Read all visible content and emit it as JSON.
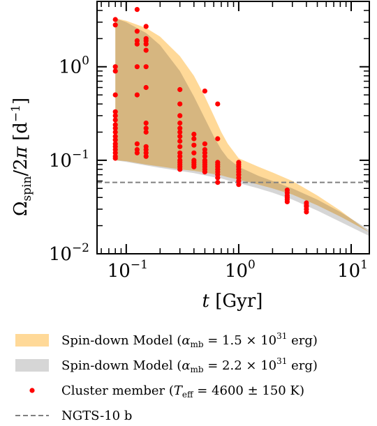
{
  "chart_data": {
    "type": "scatter",
    "title": "",
    "xlabel": "t [Gyr]",
    "ylabel": "Ω_spin/2π [d⁻¹]",
    "xscale": "log",
    "yscale": "log",
    "xlim": [
      0.055,
      14.5
    ],
    "ylim": [
      0.01,
      5.0
    ],
    "x_ticks": [
      {
        "value": 0.1,
        "base": "10",
        "exp": "−1"
      },
      {
        "value": 1,
        "base": "10",
        "exp": "0"
      },
      {
        "value": 10,
        "base": "10",
        "exp": "1"
      }
    ],
    "y_ticks": [
      {
        "value": 0.01,
        "base": "10",
        "exp": "−2"
      },
      {
        "value": 0.1,
        "base": "10",
        "exp": "−1"
      },
      {
        "value": 1,
        "base": "10",
        "exp": "0"
      }
    ],
    "grid": false,
    "legend_position": "below",
    "series": [
      {
        "name": "Spin-down Model (α_mb = 1.5 × 10³¹ erg)",
        "kind": "band",
        "color": "#ffd998",
        "x": [
          0.08,
          0.1,
          0.15,
          0.2,
          0.3,
          0.4,
          0.5,
          0.6,
          0.7,
          0.8,
          1.0,
          1.5,
          2,
          3,
          5,
          8,
          14.5
        ],
        "upper": [
          3.3,
          3.1,
          2.6,
          2.1,
          1.3,
          0.8,
          0.48,
          0.3,
          0.2,
          0.15,
          0.105,
          0.085,
          0.074,
          0.06,
          0.042,
          0.029,
          0.017
        ],
        "lower": [
          0.1,
          0.098,
          0.09,
          0.086,
          0.08,
          0.077,
          0.074,
          0.071,
          0.069,
          0.066,
          0.062,
          0.055,
          0.05,
          0.043,
          0.033,
          0.025,
          0.017
        ]
      },
      {
        "name": "Spin-down Model (α_mb = 2.2 × 10³¹ erg)",
        "kind": "band",
        "color": "#d6d6d6",
        "x": [
          0.08,
          0.1,
          0.15,
          0.2,
          0.3,
          0.4,
          0.5,
          0.6,
          0.7,
          0.8,
          1.0,
          1.5,
          2,
          3,
          5,
          8,
          14.5
        ],
        "upper": [
          3.3,
          3.0,
          2.3,
          1.7,
          0.9,
          0.48,
          0.28,
          0.18,
          0.13,
          0.105,
          0.085,
          0.068,
          0.06,
          0.05,
          0.038,
          0.028,
          0.018
        ],
        "lower": [
          0.1,
          0.096,
          0.088,
          0.083,
          0.077,
          0.073,
          0.069,
          0.066,
          0.064,
          0.061,
          0.057,
          0.05,
          0.045,
          0.038,
          0.029,
          0.022,
          0.0155
        ]
      },
      {
        "name": "Cluster member (T_eff = 4600 ± 150 K)",
        "kind": "points",
        "color": "#ff0000",
        "points": [
          [
            0.08,
            3.2
          ],
          [
            0.08,
            2.8
          ],
          [
            0.08,
            1.0
          ],
          [
            0.08,
            0.9
          ],
          [
            0.08,
            0.5
          ],
          [
            0.08,
            0.33
          ],
          [
            0.08,
            0.3
          ],
          [
            0.08,
            0.27
          ],
          [
            0.08,
            0.24
          ],
          [
            0.08,
            0.22
          ],
          [
            0.08,
            0.2
          ],
          [
            0.08,
            0.18
          ],
          [
            0.08,
            0.165
          ],
          [
            0.08,
            0.15
          ],
          [
            0.08,
            0.14
          ],
          [
            0.08,
            0.13
          ],
          [
            0.08,
            0.12
          ],
          [
            0.08,
            0.11
          ],
          [
            0.08,
            0.105
          ],
          [
            0.125,
            4.1
          ],
          [
            0.125,
            2.4
          ],
          [
            0.125,
            1.9
          ],
          [
            0.125,
            1.75
          ],
          [
            0.125,
            1.0
          ],
          [
            0.125,
            0.5
          ],
          [
            0.125,
            0.15
          ],
          [
            0.125,
            0.13
          ],
          [
            0.125,
            0.12
          ],
          [
            0.15,
            2.7
          ],
          [
            0.15,
            2.0
          ],
          [
            0.15,
            1.9
          ],
          [
            0.15,
            1.75
          ],
          [
            0.15,
            1.5
          ],
          [
            0.15,
            1.0
          ],
          [
            0.15,
            0.6
          ],
          [
            0.15,
            0.25
          ],
          [
            0.15,
            0.22
          ],
          [
            0.15,
            0.2
          ],
          [
            0.15,
            0.14
          ],
          [
            0.15,
            0.13
          ],
          [
            0.15,
            0.12
          ],
          [
            0.15,
            0.11
          ],
          [
            0.3,
            0.57
          ],
          [
            0.3,
            0.4
          ],
          [
            0.3,
            0.3
          ],
          [
            0.3,
            0.25
          ],
          [
            0.3,
            0.22
          ],
          [
            0.3,
            0.2
          ],
          [
            0.3,
            0.18
          ],
          [
            0.3,
            0.16
          ],
          [
            0.3,
            0.14
          ],
          [
            0.3,
            0.12
          ],
          [
            0.3,
            0.11
          ],
          [
            0.3,
            0.1
          ],
          [
            0.3,
            0.095
          ],
          [
            0.3,
            0.09
          ],
          [
            0.3,
            0.085
          ],
          [
            0.3,
            0.08
          ],
          [
            0.4,
            0.19
          ],
          [
            0.4,
            0.17
          ],
          [
            0.4,
            0.145
          ],
          [
            0.4,
            0.12
          ],
          [
            0.4,
            0.1
          ],
          [
            0.4,
            0.095
          ],
          [
            0.4,
            0.09
          ],
          [
            0.4,
            0.085
          ],
          [
            0.5,
            0.55
          ],
          [
            0.5,
            0.15
          ],
          [
            0.5,
            0.13
          ],
          [
            0.5,
            0.12
          ],
          [
            0.5,
            0.11
          ],
          [
            0.5,
            0.1
          ],
          [
            0.5,
            0.095
          ],
          [
            0.5,
            0.09
          ],
          [
            0.5,
            0.085
          ],
          [
            0.5,
            0.08
          ],
          [
            0.5,
            0.075
          ],
          [
            0.65,
            0.4
          ],
          [
            0.65,
            0.17
          ],
          [
            0.65,
            0.095
          ],
          [
            0.65,
            0.09
          ],
          [
            0.65,
            0.085
          ],
          [
            0.65,
            0.08
          ],
          [
            0.65,
            0.075
          ],
          [
            0.65,
            0.07
          ],
          [
            0.65,
            0.065
          ],
          [
            0.65,
            0.058
          ],
          [
            1.0,
            0.095
          ],
          [
            1.0,
            0.09
          ],
          [
            1.0,
            0.085
          ],
          [
            1.0,
            0.08
          ],
          [
            1.0,
            0.075
          ],
          [
            1.0,
            0.07
          ],
          [
            1.0,
            0.065
          ],
          [
            1.0,
            0.06
          ],
          [
            1.0,
            0.055
          ],
          [
            2.7,
            0.048
          ],
          [
            2.7,
            0.045
          ],
          [
            2.7,
            0.042
          ],
          [
            2.7,
            0.04
          ],
          [
            2.7,
            0.038
          ],
          [
            2.7,
            0.036
          ],
          [
            4.0,
            0.035
          ],
          [
            4.0,
            0.033
          ],
          [
            4.0,
            0.032
          ],
          [
            4.0,
            0.03
          ],
          [
            4.0,
            0.028
          ]
        ]
      },
      {
        "name": "NGTS-10 b",
        "kind": "hline",
        "color": "#808080",
        "y": 0.058
      }
    ]
  },
  "legend": {
    "items": [
      {
        "kind": "band",
        "color": "#ffd998",
        "prefix": "Spin-down Model (",
        "sym": "α",
        "sub": "mb",
        "mid": " = 1.5 × 10",
        "sup": "31",
        "suffix": " erg)"
      },
      {
        "kind": "band",
        "color": "#d6d6d6",
        "prefix": "Spin-down Model (",
        "sym": "α",
        "sub": "mb",
        "mid": " = 2.2 × 10",
        "sup": "31",
        "suffix": " erg)"
      },
      {
        "kind": "point",
        "color": "#ff0000",
        "prefix": "Cluster member (",
        "sym": "T",
        "sub": "eff",
        "mid": " = 4600 ± 150 K",
        "sup": "",
        "suffix": ")"
      },
      {
        "kind": "dash",
        "color": "#808080",
        "prefix": "NGTS-10 b",
        "sym": "",
        "sub": "",
        "mid": "",
        "sup": "",
        "suffix": ""
      }
    ]
  }
}
